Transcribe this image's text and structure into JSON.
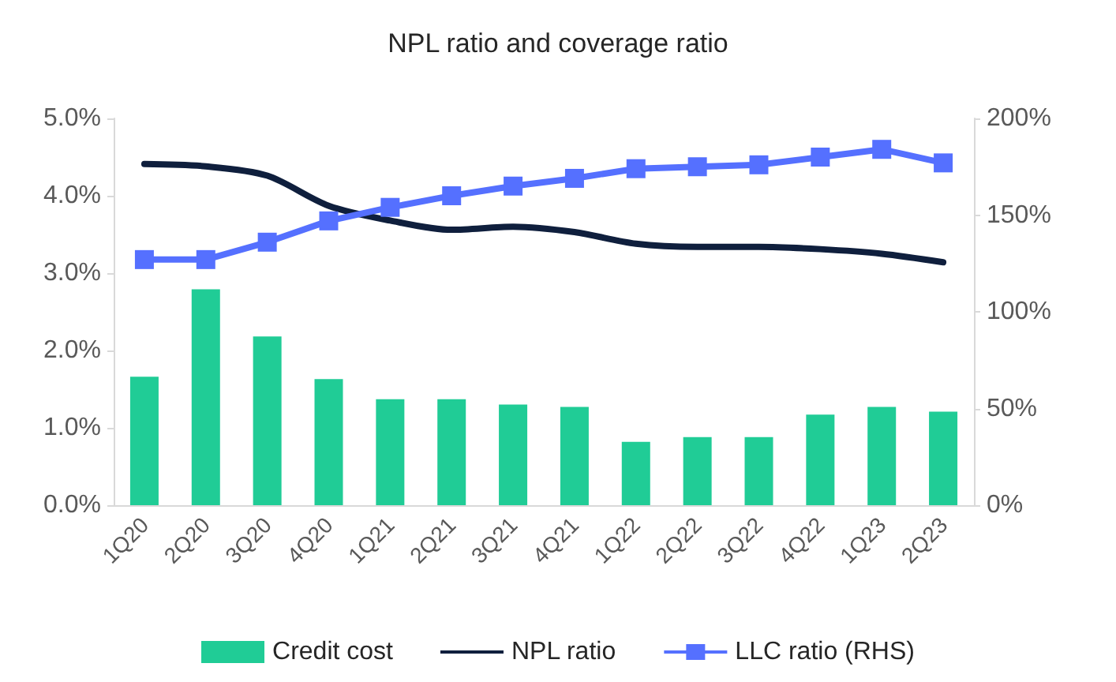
{
  "chart_data": {
    "type": "bar",
    "title": "NPL ratio and coverage ratio",
    "categories": [
      "1Q20",
      "2Q20",
      "3Q20",
      "4Q20",
      "1Q21",
      "2Q21",
      "3Q21",
      "4Q21",
      "1Q22",
      "2Q22",
      "3Q22",
      "4Q22",
      "1Q23",
      "2Q23"
    ],
    "series": [
      {
        "name": "Credit cost",
        "color": "#20cc96",
        "values": [
          1.66,
          2.79,
          2.18,
          1.63,
          1.37,
          1.37,
          1.3,
          1.27,
          0.82,
          0.88,
          0.88,
          1.17,
          1.27,
          1.21
        ]
      },
      {
        "name": "NPL ratio",
        "type": "line",
        "color": "#0f1f3d",
        "marker": "none",
        "values": [
          4.41,
          4.38,
          4.26,
          3.87,
          3.68,
          3.56,
          3.6,
          3.53,
          3.38,
          3.34,
          3.34,
          3.31,
          3.25,
          3.14
        ]
      },
      {
        "name": "LLC ratio (RHS)",
        "type": "line",
        "color": "#5570ff",
        "marker": "square",
        "axis": "y2",
        "values": [
          127,
          127,
          136,
          147,
          154,
          160,
          165,
          169,
          174,
          175,
          176,
          180,
          184,
          177
        ]
      }
    ],
    "ylim": [
      0,
      5
    ],
    "yticks": [
      {
        "value": 0,
        "label": "0.0%"
      },
      {
        "value": 1,
        "label": "1.0%"
      },
      {
        "value": 2,
        "label": "2.0%"
      },
      {
        "value": 3,
        "label": "3.0%"
      },
      {
        "value": 4,
        "label": "4.0%"
      },
      {
        "value": 5,
        "label": "5.0%"
      }
    ],
    "y2lim": [
      0,
      200
    ],
    "y2ticks": [
      {
        "value": 0,
        "label": "0%"
      },
      {
        "value": 50,
        "label": "50%"
      },
      {
        "value": 100,
        "label": "100%"
      },
      {
        "value": 150,
        "label": "150%"
      },
      {
        "value": 200,
        "label": "200%"
      }
    ],
    "grid": false,
    "legend": "bottom"
  }
}
